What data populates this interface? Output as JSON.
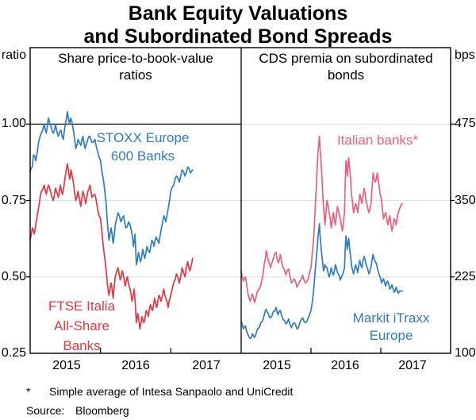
{
  "title": {
    "line1": "Bank Equity Valuations",
    "line2": "and Subordinated Bond Spreads"
  },
  "panels": {
    "left": {
      "heading": [
        "Share price-to-book-value",
        "ratios"
      ],
      "unit": "ratio",
      "y_tick_labels": [
        "1.00",
        "0.75",
        "0.50",
        "0.25"
      ],
      "x_tick_labels": [
        "2015",
        "2016",
        "2017"
      ]
    },
    "right": {
      "heading": [
        "CDS premia on subordinated",
        "bonds"
      ],
      "unit": "bps",
      "y_tick_labels": [
        "475",
        "350",
        "225",
        "100"
      ],
      "x_tick_labels": [
        "2015",
        "2016",
        "2017"
      ]
    }
  },
  "series_labels": {
    "stoxx": {
      "lines": [
        "STOXX Europe",
        "600 Banks"
      ],
      "color": "#2F7BC4"
    },
    "ftse": {
      "lines": [
        "FTSE Italia",
        "All-Share",
        "Banks"
      ],
      "color": "#E8353F"
    },
    "italian": {
      "lines": [
        "Italian banks*"
      ],
      "color": "#ED5F7B"
    },
    "itraxx": {
      "lines": [
        "Markit iTraxx",
        "Europe"
      ],
      "color": "#2F7BC4"
    }
  },
  "footnote": {
    "marker": "*",
    "text": "Simple average of Intesa Sanpaolo and UniCredit"
  },
  "source": {
    "label": "Source:",
    "value": "Bloomberg"
  },
  "colors": {
    "blue": "#2F7BC4",
    "red": "#E8353F",
    "pink": "#ED5F7B",
    "gridline": "#D8E3ED",
    "frame": "#000000"
  },
  "chart_data": [
    {
      "type": "line",
      "panel": "left",
      "title": "Share price-to-book-value ratios",
      "ylabel": "ratio",
      "ylim": [
        0.25,
        1.25
      ],
      "gridlines": [
        0.5,
        0.75
      ],
      "reference_line": 1.0,
      "x_range": [
        2015,
        2018
      ],
      "year_ticks": [
        2016,
        2017
      ],
      "series": [
        {
          "name": "FTSE Italia All-Share Banks",
          "color": "#E8353F",
          "x": [
            2015.0,
            2015.03,
            2015.06,
            2015.1,
            2015.13,
            2015.16,
            2015.2,
            2015.23,
            2015.26,
            2015.3,
            2015.33,
            2015.36,
            2015.4,
            2015.43,
            2015.46,
            2015.5,
            2015.53,
            2015.56,
            2015.58,
            2015.62,
            2015.65,
            2015.68,
            2015.72,
            2015.75,
            2015.79,
            2015.82,
            2015.85,
            2015.88,
            2015.92,
            2015.96,
            2016.0,
            2016.04,
            2016.08,
            2016.12,
            2016.15,
            2016.18,
            2016.21,
            2016.25,
            2016.28,
            2016.31,
            2016.35,
            2016.38,
            2016.42,
            2016.45,
            2016.48,
            2016.51,
            2016.53,
            2016.56,
            2016.59,
            2016.62,
            2016.65,
            2016.68,
            2016.71,
            2016.74,
            2016.77,
            2016.8,
            2016.83,
            2016.86,
            2016.9,
            2016.93,
            2016.96,
            2017.0,
            2017.04,
            2017.08,
            2017.12,
            2017.16,
            2017.2,
            2017.24,
            2017.27,
            2017.31
          ],
          "y": [
            0.62,
            0.66,
            0.64,
            0.7,
            0.74,
            0.78,
            0.8,
            0.77,
            0.8,
            0.77,
            0.75,
            0.79,
            0.76,
            0.8,
            0.77,
            0.83,
            0.87,
            0.82,
            0.85,
            0.8,
            0.75,
            0.78,
            0.73,
            0.78,
            0.74,
            0.78,
            0.8,
            0.76,
            0.77,
            0.72,
            0.69,
            0.6,
            0.52,
            0.44,
            0.48,
            0.43,
            0.5,
            0.53,
            0.49,
            0.52,
            0.47,
            0.5,
            0.46,
            0.42,
            0.46,
            0.35,
            0.38,
            0.33,
            0.37,
            0.35,
            0.39,
            0.37,
            0.41,
            0.39,
            0.43,
            0.4,
            0.44,
            0.42,
            0.46,
            0.43,
            0.4,
            0.44,
            0.48,
            0.51,
            0.48,
            0.53,
            0.5,
            0.55,
            0.52,
            0.56
          ]
        },
        {
          "name": "STOXX Europe 600 Banks",
          "color": "#2F7BC4",
          "x": [
            2015.0,
            2015.03,
            2015.05,
            2015.08,
            2015.12,
            2015.16,
            2015.2,
            2015.23,
            2015.26,
            2015.3,
            2015.33,
            2015.36,
            2015.4,
            2015.44,
            2015.47,
            2015.5,
            2015.53,
            2015.56,
            2015.58,
            2015.62,
            2015.65,
            2015.68,
            2015.72,
            2015.75,
            2015.78,
            2015.82,
            2015.85,
            2015.88,
            2015.92,
            2015.96,
            2016.0,
            2016.04,
            2016.08,
            2016.12,
            2016.15,
            2016.18,
            2016.21,
            2016.25,
            2016.29,
            2016.33,
            2016.36,
            2016.4,
            2016.44,
            2016.47,
            2016.49,
            2016.51,
            2016.54,
            2016.57,
            2016.6,
            2016.63,
            2016.66,
            2016.7,
            2016.73,
            2016.76,
            2016.79,
            2016.83,
            2016.86,
            2016.9,
            2016.93,
            2016.96,
            2017.0,
            2017.04,
            2017.08,
            2017.12,
            2017.16,
            2017.2,
            2017.24,
            2017.28,
            2017.31
          ],
          "y": [
            0.845,
            0.86,
            0.9,
            0.88,
            0.94,
            0.97,
            1.0,
            0.97,
            1.02,
            0.99,
            0.97,
            1.0,
            0.96,
            0.98,
            0.95,
            1.0,
            1.04,
            1.0,
            1.02,
            0.97,
            0.92,
            0.95,
            0.93,
            0.96,
            0.92,
            0.95,
            0.96,
            0.94,
            0.95,
            0.91,
            0.88,
            0.82,
            0.74,
            0.62,
            0.66,
            0.61,
            0.67,
            0.71,
            0.68,
            0.7,
            0.66,
            0.68,
            0.65,
            0.6,
            0.64,
            0.54,
            0.58,
            0.55,
            0.59,
            0.56,
            0.6,
            0.58,
            0.62,
            0.6,
            0.63,
            0.61,
            0.65,
            0.7,
            0.68,
            0.72,
            0.78,
            0.8,
            0.83,
            0.81,
            0.85,
            0.83,
            0.86,
            0.84,
            0.85
          ]
        }
      ]
    },
    {
      "type": "line",
      "panel": "right",
      "title": "CDS premia on subordinated bonds",
      "ylabel": "bps",
      "ylim": [
        100,
        600
      ],
      "gridlines": [
        225,
        350,
        475
      ],
      "reference_line": null,
      "x_range": [
        2015,
        2018
      ],
      "year_ticks": [
        2016,
        2017
      ],
      "series": [
        {
          "name": "Markit iTraxx Europe",
          "color": "#2F7BC4",
          "x": [
            2015.0,
            2015.03,
            2015.06,
            2015.1,
            2015.13,
            2015.16,
            2015.19,
            2015.22,
            2015.26,
            2015.3,
            2015.33,
            2015.36,
            2015.39,
            2015.42,
            2015.46,
            2015.5,
            2015.53,
            2015.56,
            2015.6,
            2015.64,
            2015.68,
            2015.72,
            2015.76,
            2015.8,
            2015.84,
            2015.88,
            2015.92,
            2015.96,
            2016.0,
            2016.04,
            2016.08,
            2016.1,
            2016.12,
            2016.14,
            2016.16,
            2016.18,
            2016.2,
            2016.23,
            2016.26,
            2016.29,
            2016.32,
            2016.35,
            2016.38,
            2016.42,
            2016.45,
            2016.48,
            2016.5,
            2016.52,
            2016.54,
            2016.56,
            2016.58,
            2016.61,
            2016.64,
            2016.67,
            2016.7,
            2016.73,
            2016.76,
            2016.79,
            2016.83,
            2016.86,
            2016.89,
            2016.92,
            2016.95,
            2016.98,
            2017.01,
            2017.04,
            2017.07,
            2017.1,
            2017.13,
            2017.16,
            2017.19,
            2017.22,
            2017.25,
            2017.31
          ],
          "y": [
            152,
            140,
            145,
            130,
            124,
            132,
            126,
            135,
            142,
            152,
            162,
            172,
            165,
            158,
            168,
            175,
            163,
            170,
            155,
            148,
            156,
            142,
            150,
            140,
            150,
            158,
            150,
            158,
            170,
            205,
            260,
            290,
            312,
            280,
            255,
            235,
            245,
            240,
            225,
            240,
            228,
            245,
            232,
            220,
            228,
            240,
            292,
            270,
            288,
            265,
            245,
            230,
            245,
            232,
            252,
            240,
            258,
            245,
            230,
            242,
            262,
            250,
            240,
            228,
            215,
            222,
            210,
            218,
            205,
            212,
            200,
            208,
            198,
            202
          ]
        },
        {
          "name": "Italian banks (simple average of Intesa Sanpaolo and UniCredit)",
          "color": "#ED5F7B",
          "x": [
            2015.0,
            2015.03,
            2015.06,
            2015.1,
            2015.13,
            2015.16,
            2015.19,
            2015.22,
            2015.26,
            2015.3,
            2015.33,
            2015.36,
            2015.39,
            2015.42,
            2015.46,
            2015.5,
            2015.53,
            2015.56,
            2015.6,
            2015.64,
            2015.68,
            2015.72,
            2015.76,
            2015.8,
            2015.84,
            2015.88,
            2015.92,
            2015.96,
            2016.0,
            2016.04,
            2016.08,
            2016.1,
            2016.12,
            2016.14,
            2016.16,
            2016.18,
            2016.2,
            2016.23,
            2016.26,
            2016.29,
            2016.32,
            2016.35,
            2016.38,
            2016.42,
            2016.45,
            2016.48,
            2016.5,
            2016.52,
            2016.54,
            2016.56,
            2016.58,
            2016.61,
            2016.64,
            2016.67,
            2016.7,
            2016.73,
            2016.76,
            2016.79,
            2016.83,
            2016.86,
            2016.89,
            2016.92,
            2016.95,
            2016.98,
            2017.01,
            2017.04,
            2017.07,
            2017.1,
            2017.13,
            2017.16,
            2017.19,
            2017.22,
            2017.25,
            2017.31
          ],
          "y": [
            235,
            218,
            225,
            196,
            185,
            197,
            183,
            196,
            205,
            222,
            245,
            268,
            252,
            240,
            255,
            265,
            248,
            262,
            240,
            228,
            238,
            215,
            222,
            208,
            218,
            228,
            215,
            222,
            240,
            290,
            380,
            430,
            455,
            420,
            380,
            340,
            310,
            350,
            330,
            305,
            330,
            310,
            340,
            320,
            300,
            330,
            415,
            390,
            420,
            395,
            360,
            330,
            345,
            330,
            360,
            345,
            370,
            350,
            330,
            345,
            395,
            380,
            395,
            370,
            350,
            320,
            330,
            310,
            325,
            300,
            320,
            310,
            330,
            345
          ]
        }
      ]
    }
  ]
}
